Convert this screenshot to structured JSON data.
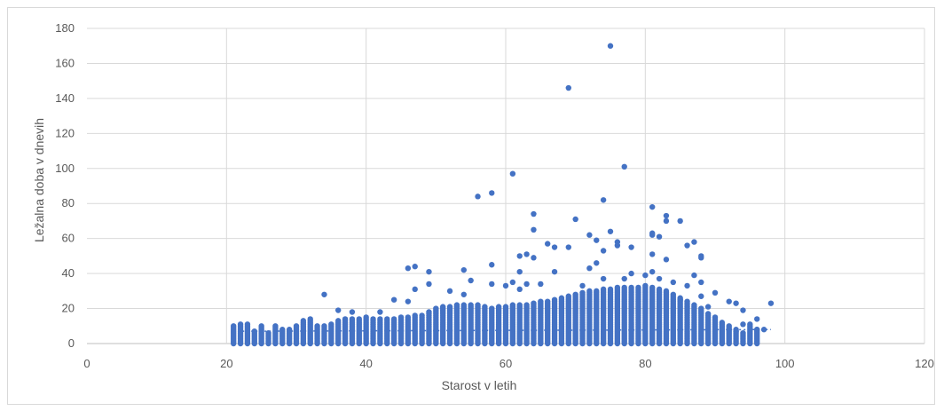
{
  "chart_data": {
    "type": "scatter",
    "title": "",
    "xlabel": "Starost v letih",
    "ylabel": "Ležalna doba v dnevih",
    "xlim": [
      0,
      120
    ],
    "ylim": [
      0,
      180
    ],
    "x_ticks": [
      "0",
      "20",
      "40",
      "60",
      "80",
      "100",
      "120"
    ],
    "y_ticks": [
      "0",
      "20",
      "40",
      "60",
      "80",
      "100",
      "120",
      "140",
      "160",
      "180"
    ],
    "grid": true,
    "legend": "none",
    "color": "#4472c4",
    "trendline": {
      "style": "dotted",
      "x": [
        21,
        98
      ],
      "y": [
        7,
        8
      ]
    },
    "columns_dense": [
      [
        21,
        10
      ],
      [
        22,
        11
      ],
      [
        23,
        11
      ],
      [
        24,
        7
      ],
      [
        25,
        10
      ],
      [
        26,
        6
      ],
      [
        27,
        10
      ],
      [
        28,
        8
      ],
      [
        29,
        8
      ],
      [
        30,
        10
      ],
      [
        31,
        13
      ],
      [
        32,
        14
      ],
      [
        33,
        10
      ],
      [
        34,
        10
      ],
      [
        35,
        11
      ],
      [
        36,
        13
      ],
      [
        37,
        14
      ],
      [
        38,
        14
      ],
      [
        39,
        14
      ],
      [
        40,
        15
      ],
      [
        41,
        14
      ],
      [
        42,
        14
      ],
      [
        43,
        14
      ],
      [
        44,
        14
      ],
      [
        45,
        15
      ],
      [
        46,
        15
      ],
      [
        47,
        16
      ],
      [
        48,
        16
      ],
      [
        49,
        18
      ],
      [
        50,
        20
      ],
      [
        51,
        21
      ],
      [
        52,
        21
      ],
      [
        53,
        22
      ],
      [
        54,
        22
      ],
      [
        55,
        22
      ],
      [
        56,
        22
      ],
      [
        57,
        21
      ],
      [
        58,
        20
      ],
      [
        59,
        21
      ],
      [
        60,
        21
      ],
      [
        61,
        22
      ],
      [
        62,
        22
      ],
      [
        63,
        22
      ],
      [
        64,
        23
      ],
      [
        65,
        24
      ],
      [
        66,
        24
      ],
      [
        67,
        25
      ],
      [
        68,
        26
      ],
      [
        69,
        27
      ],
      [
        70,
        28
      ],
      [
        71,
        29
      ],
      [
        72,
        30
      ],
      [
        73,
        30
      ],
      [
        74,
        31
      ],
      [
        75,
        31
      ],
      [
        76,
        32
      ],
      [
        77,
        32
      ],
      [
        78,
        32
      ],
      [
        79,
        32
      ],
      [
        80,
        33
      ],
      [
        81,
        32
      ],
      [
        82,
        31
      ],
      [
        83,
        30
      ],
      [
        84,
        28
      ],
      [
        85,
        26
      ],
      [
        86,
        24
      ],
      [
        87,
        22
      ],
      [
        88,
        20
      ],
      [
        89,
        17
      ],
      [
        90,
        15
      ],
      [
        91,
        12
      ],
      [
        92,
        10
      ],
      [
        93,
        8
      ],
      [
        94,
        6
      ],
      [
        95,
        10
      ],
      [
        96,
        8
      ]
    ],
    "points": [
      [
        75,
        170
      ],
      [
        69,
        146
      ],
      [
        77,
        101
      ],
      [
        61,
        97
      ],
      [
        58,
        86
      ],
      [
        56,
        84
      ],
      [
        74,
        82
      ],
      [
        81,
        78
      ],
      [
        64,
        74
      ],
      [
        83,
        73
      ],
      [
        70,
        71
      ],
      [
        83,
        70
      ],
      [
        85,
        70
      ],
      [
        64,
        65
      ],
      [
        75,
        64
      ],
      [
        81,
        63
      ],
      [
        81,
        62
      ],
      [
        72,
        62
      ],
      [
        82,
        61
      ],
      [
        73,
        59
      ],
      [
        87,
        58
      ],
      [
        76,
        58
      ],
      [
        66,
        57
      ],
      [
        76,
        56
      ],
      [
        86,
        56
      ],
      [
        67,
        55
      ],
      [
        69,
        55
      ],
      [
        78,
        55
      ],
      [
        74,
        53
      ],
      [
        63,
        51
      ],
      [
        62,
        50
      ],
      [
        81,
        51
      ],
      [
        88,
        50
      ],
      [
        64,
        49
      ],
      [
        88,
        49
      ],
      [
        83,
        48
      ],
      [
        73,
        46
      ],
      [
        58,
        45
      ],
      [
        47,
        44
      ],
      [
        46,
        43
      ],
      [
        72,
        43
      ],
      [
        54,
        42
      ],
      [
        49,
        41
      ],
      [
        62,
        41
      ],
      [
        67,
        41
      ],
      [
        78,
        40
      ],
      [
        81,
        41
      ],
      [
        80,
        39
      ],
      [
        87,
        39
      ],
      [
        74,
        37
      ],
      [
        77,
        37
      ],
      [
        82,
        37
      ],
      [
        55,
        36
      ],
      [
        61,
        35
      ],
      [
        84,
        35
      ],
      [
        88,
        35
      ],
      [
        63,
        34
      ],
      [
        65,
        34
      ],
      [
        58,
        34
      ],
      [
        49,
        34
      ],
      [
        60,
        33
      ],
      [
        71,
        33
      ],
      [
        86,
        33
      ],
      [
        62,
        31
      ],
      [
        52,
        30
      ],
      [
        47,
        31
      ],
      [
        90,
        29
      ],
      [
        34,
        28
      ],
      [
        54,
        28
      ],
      [
        88,
        27
      ],
      [
        44,
        25
      ],
      [
        46,
        24
      ],
      [
        85,
        25
      ],
      [
        92,
        24
      ],
      [
        93,
        23
      ],
      [
        98,
        23
      ],
      [
        89,
        21
      ],
      [
        36,
        19
      ],
      [
        38,
        18
      ],
      [
        42,
        18
      ],
      [
        94,
        19
      ],
      [
        95,
        11
      ],
      [
        96,
        14
      ],
      [
        94,
        11
      ],
      [
        96,
        8
      ],
      [
        97,
        8
      ],
      [
        93,
        7
      ]
    ]
  }
}
